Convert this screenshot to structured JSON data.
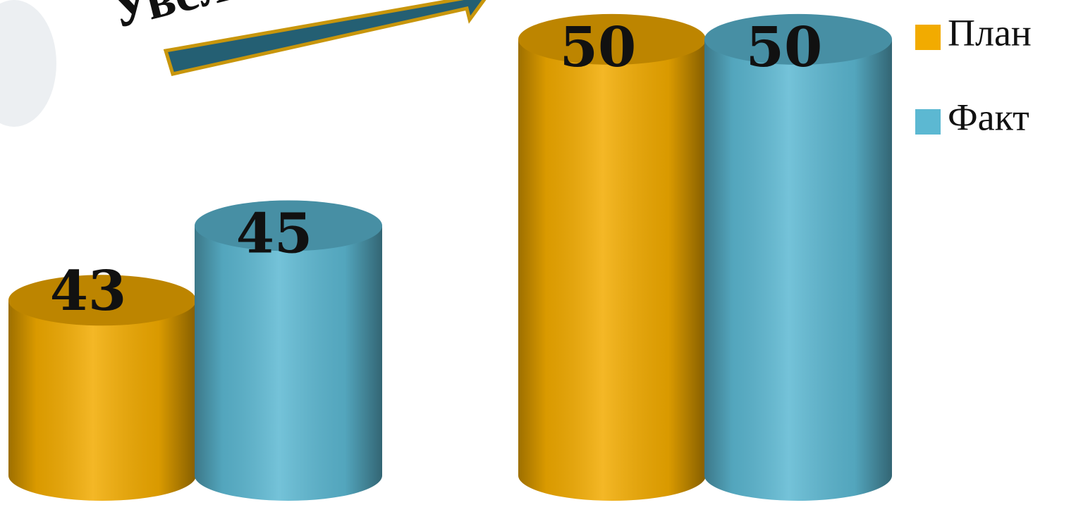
{
  "chart_data": {
    "type": "bar",
    "annotation": "Увел",
    "categories": [
      null,
      null
    ],
    "series": [
      {
        "name": "План",
        "color": "#f2ab00",
        "values": [
          43,
          50
        ]
      },
      {
        "name": "Факт",
        "color": "#5cb8d2",
        "values": [
          45,
          50
        ]
      }
    ],
    "ylim": [
      38.3,
      51
    ],
    "legend": "right"
  }
}
